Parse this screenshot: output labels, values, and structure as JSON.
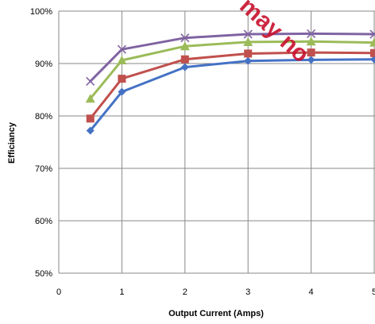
{
  "chart_data": {
    "type": "line",
    "title": "",
    "xlabel": "Output Current (Amps)",
    "ylabel": "Efficiancy",
    "xlim": [
      0,
      5
    ],
    "ylim": [
      50,
      100
    ],
    "x_ticks": [
      "0",
      "1",
      "2",
      "3",
      "4",
      "5"
    ],
    "y_ticks": [
      "50%",
      "60%",
      "70%",
      "80%",
      "90%",
      "100%"
    ],
    "grid": true,
    "legend": "none",
    "x": [
      0.5,
      1,
      2,
      3,
      4,
      5
    ],
    "series": [
      {
        "color": "#4472c4",
        "marker": "diamond",
        "values": [
          77.2,
          84.6,
          89.3,
          90.5,
          90.7,
          90.8
        ]
      },
      {
        "color": "#c0504d",
        "marker": "square",
        "values": [
          79.5,
          87.1,
          90.8,
          91.9,
          92.1,
          92.0
        ]
      },
      {
        "color": "#9bbb59",
        "marker": "triangle",
        "values": [
          83.3,
          90.6,
          93.3,
          94.1,
          94.2,
          94.0
        ]
      },
      {
        "color": "#8064a2",
        "marker": "x",
        "values": [
          86.6,
          92.7,
          94.9,
          95.6,
          95.7,
          95.6
        ]
      }
    ]
  },
  "watermark": {
    "text": "may no",
    "color": "#c8102e"
  }
}
